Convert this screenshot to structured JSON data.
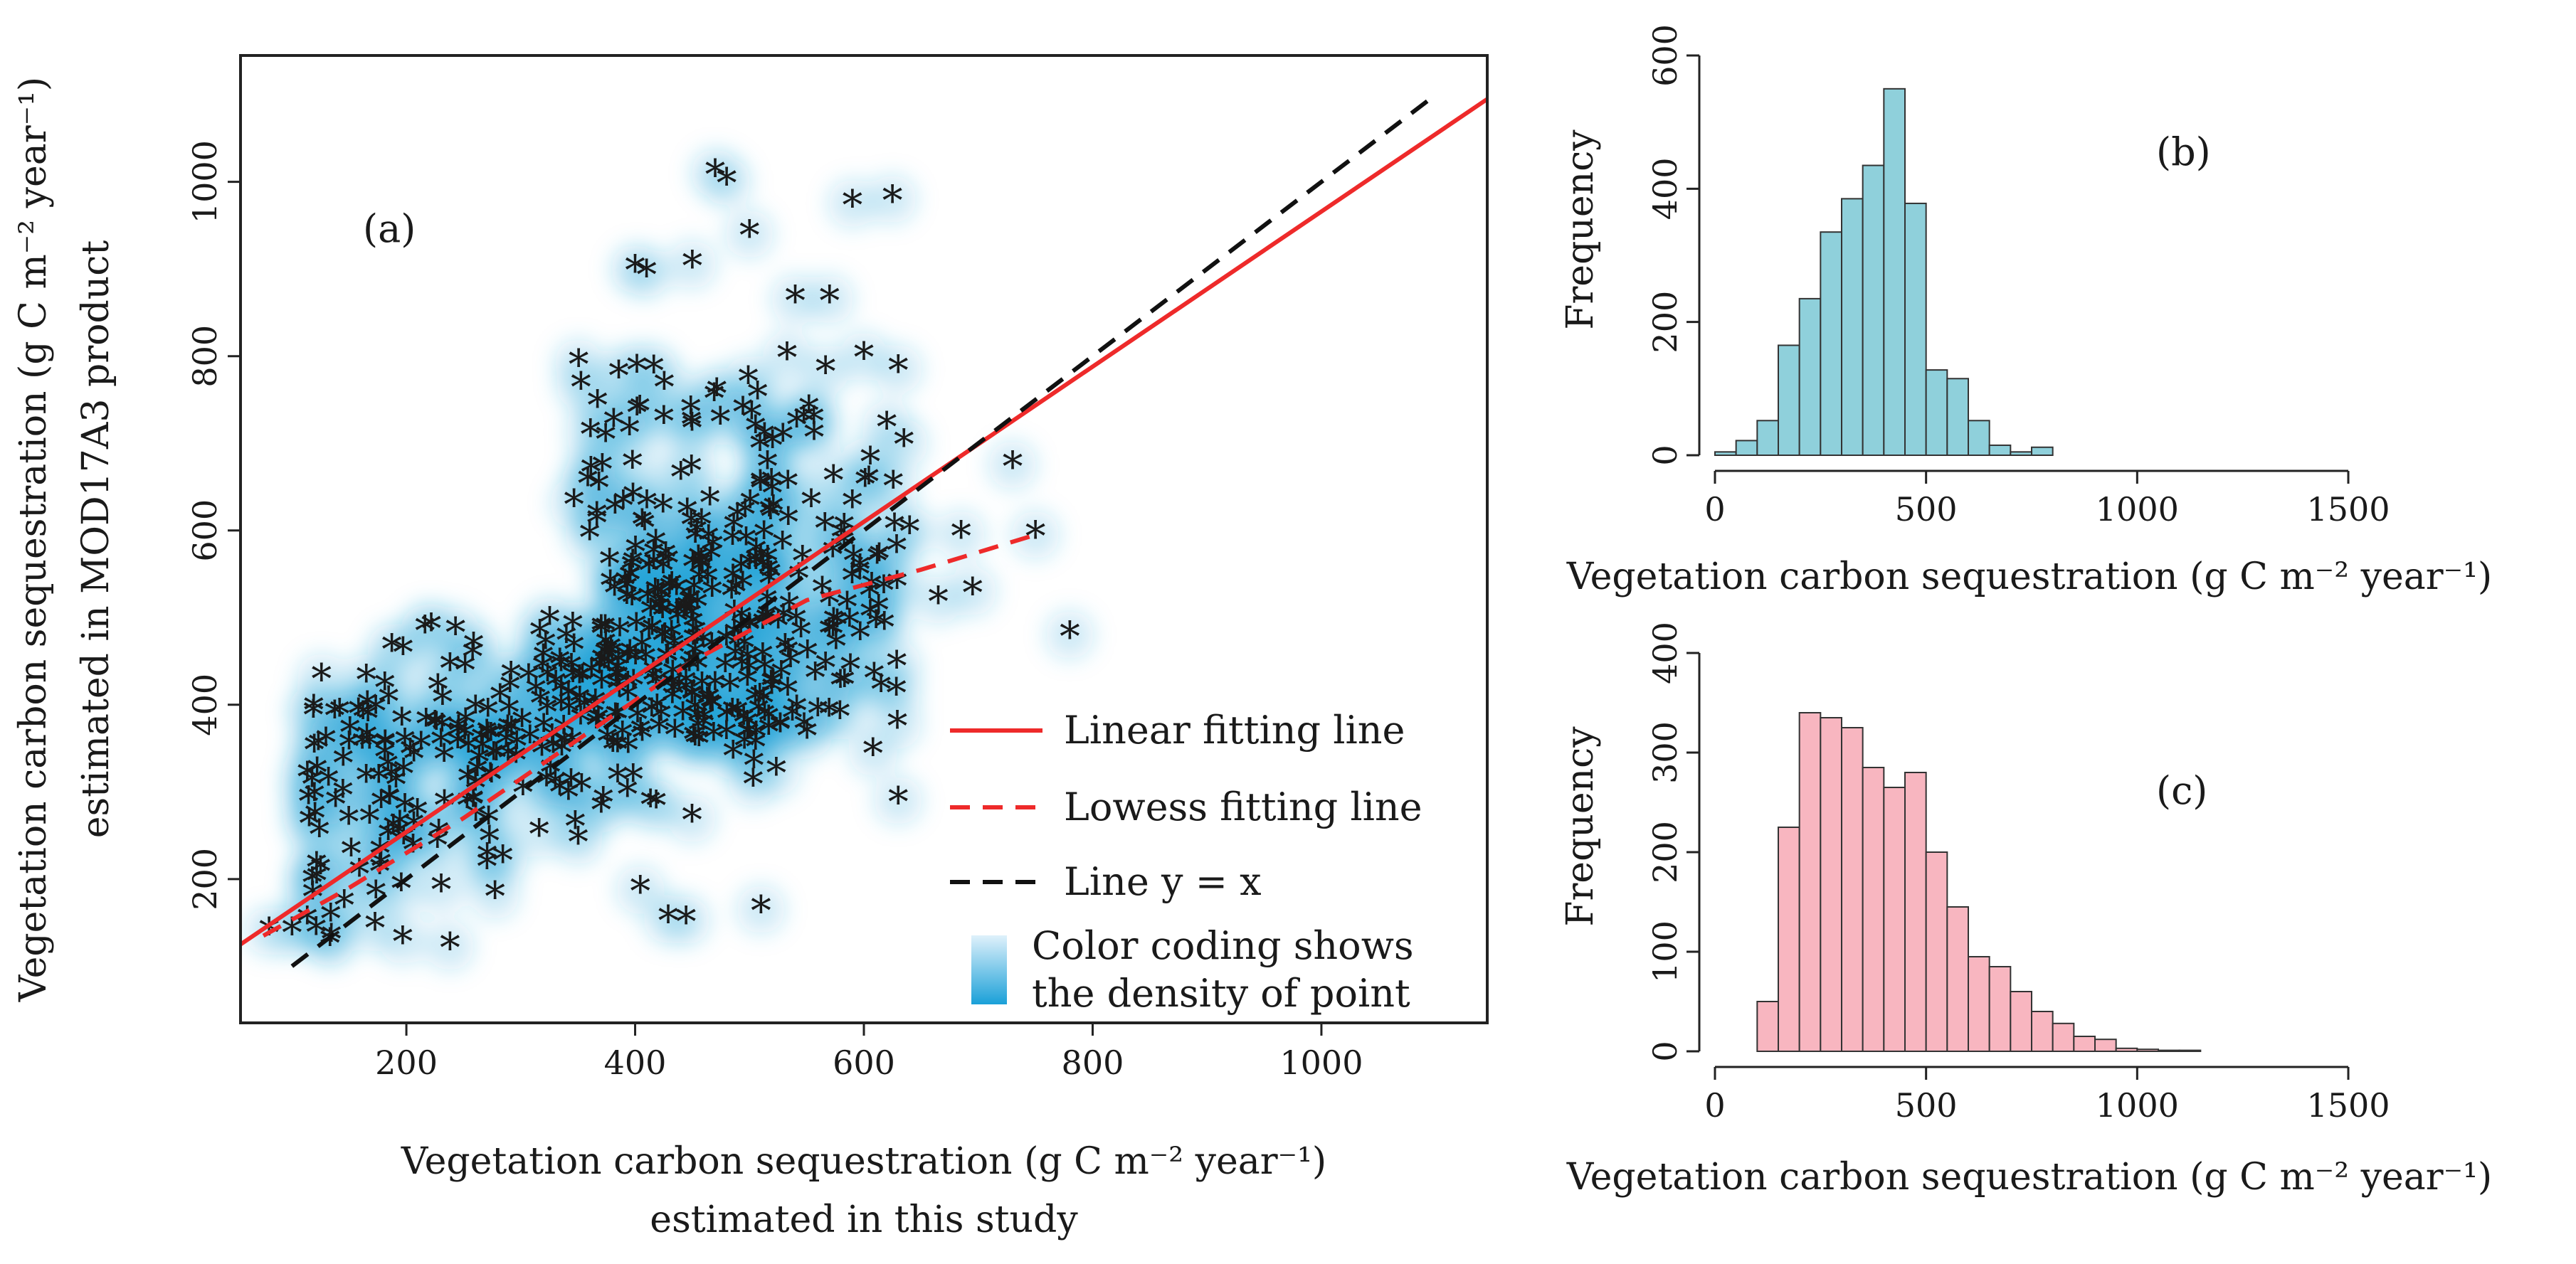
{
  "chart_data": [
    {
      "id": "a",
      "type": "scatter",
      "panel_label": "(a)",
      "xlabel_line1": "Vegetation carbon sequestration (g C m⁻² year⁻¹)",
      "xlabel_line2": "estimated in this study",
      "ylabel_line1": "Vegetation carbon sequestration (g C m⁻² year⁻¹)",
      "ylabel_line2": "estimated in MOD17A3 product",
      "xlim": [
        55,
        1145
      ],
      "ylim": [
        35,
        1145
      ],
      "xticks": [
        200,
        400,
        600,
        800,
        1000
      ],
      "yticks": [
        200,
        400,
        600,
        800,
        1000
      ],
      "xtick_labels": [
        "200",
        "400",
        "600",
        "800",
        "1000"
      ],
      "ytick_labels": [
        "200",
        "400",
        "600",
        "800",
        "1000"
      ],
      "density_color": "#1aa0d8",
      "point_color": "#3a3aa0",
      "outlier_points": [
        [
          470,
          1010
        ],
        [
          480,
          1000
        ],
        [
          500,
          940
        ],
        [
          590,
          975
        ],
        [
          625,
          980
        ],
        [
          400,
          900
        ],
        [
          410,
          895
        ],
        [
          450,
          905
        ],
        [
          540,
          865
        ],
        [
          570,
          865
        ],
        [
          600,
          800
        ],
        [
          630,
          785
        ],
        [
          620,
          720
        ],
        [
          635,
          700
        ],
        [
          730,
          675
        ],
        [
          640,
          600
        ],
        [
          685,
          595
        ],
        [
          750,
          595
        ],
        [
          780,
          480
        ],
        [
          695,
          530
        ],
        [
          665,
          520
        ],
        [
          630,
          290
        ],
        [
          510,
          165
        ],
        [
          165,
          430
        ],
        [
          115,
          265
        ],
        [
          80,
          140
        ],
        [
          100,
          140
        ],
        [
          125,
          210
        ]
      ],
      "series": [
        {
          "name": "Linear fitting line",
          "style": "solid",
          "color": "#ee2a2a",
          "x": [
            55,
            1145
          ],
          "y": [
            125,
            1095
          ]
        },
        {
          "name": "Lowess fitting line",
          "style": "dashed",
          "color": "#ee2a2a",
          "x": [
            75,
            150,
            250,
            350,
            450,
            550,
            650,
            750
          ],
          "y": [
            135,
            190,
            270,
            360,
            450,
            520,
            555,
            595
          ]
        },
        {
          "name": "Line y = x",
          "style": "dashed",
          "color": "#111111",
          "x": [
            100,
            1100
          ],
          "y": [
            100,
            1100
          ]
        }
      ],
      "legend": {
        "position": "bottom-right",
        "items": [
          "Linear fitting line",
          "Lowess fitting line",
          "Line y = x"
        ],
        "density_note_line1": "Color coding shows",
        "density_note_line2": "the density of point"
      }
    },
    {
      "id": "b",
      "type": "bar",
      "panel_label": "(b)",
      "ylabel": "Frequency",
      "xlabel": "Vegetation carbon sequestration (g C m⁻² year⁻¹)",
      "bin_width": 50,
      "bin_start": 0,
      "values": [
        5,
        22,
        52,
        165,
        235,
        335,
        385,
        435,
        550,
        378,
        128,
        115,
        52,
        15,
        5,
        12
      ],
      "xlim": [
        0,
        1500
      ],
      "ylim": [
        0,
        600
      ],
      "xticks": [
        0,
        500,
        1000,
        1500
      ],
      "yticks": [
        0,
        200,
        400,
        600
      ],
      "xtick_labels": [
        "0",
        "500",
        "1000",
        "1500"
      ],
      "ytick_labels": [
        "0",
        "200",
        "400",
        "600"
      ],
      "bar_color": "#8fd0db",
      "edge_color": "#333333"
    },
    {
      "id": "c",
      "type": "bar",
      "panel_label": "(c)",
      "ylabel": "Frequency",
      "xlabel": "Vegetation carbon sequestration (g C m⁻² year⁻¹)",
      "bin_width": 50,
      "bin_start": 100,
      "values": [
        50,
        225,
        340,
        335,
        325,
        285,
        265,
        280,
        200,
        145,
        95,
        85,
        60,
        40,
        28,
        15,
        12,
        3,
        2,
        1,
        1,
        0
      ],
      "xlim": [
        0,
        1500
      ],
      "ylim": [
        0,
        400
      ],
      "xticks": [
        0,
        500,
        1000,
        1500
      ],
      "yticks": [
        0,
        100,
        200,
        300,
        400
      ],
      "xtick_labels": [
        "0",
        "500",
        "1000",
        "1500"
      ],
      "ytick_labels": [
        "0",
        "100",
        "200",
        "300",
        "400"
      ],
      "bar_color": "#f8b6c0",
      "edge_color": "#333333"
    }
  ]
}
